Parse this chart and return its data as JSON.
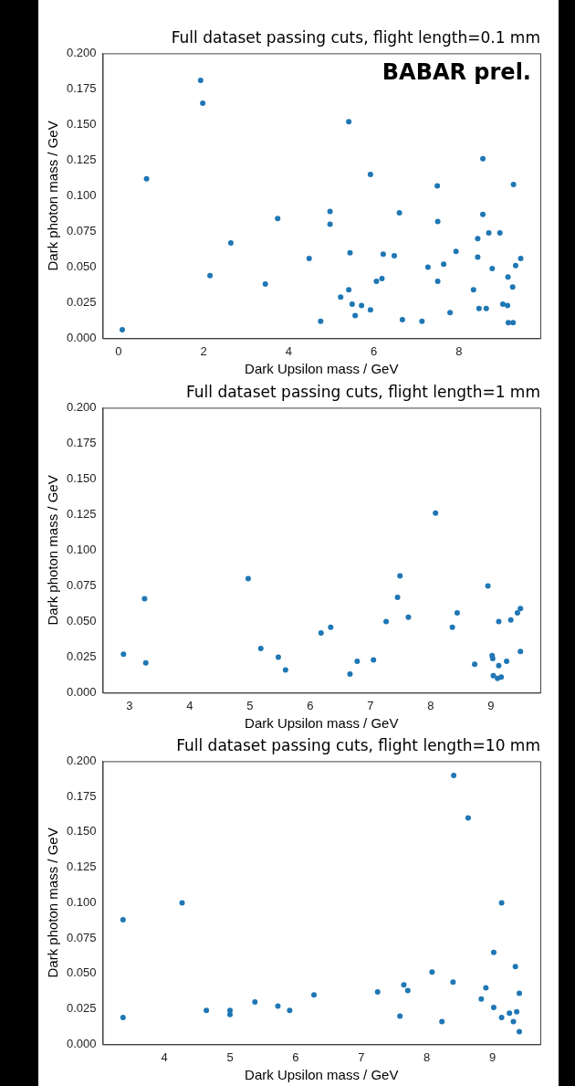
{
  "chart_data": [
    {
      "type": "scatter",
      "title": "Full dataset passing cuts, flight length=0.1 mm",
      "xlabel": "Dark Upsilon mass / GeV",
      "ylabel": "Dark photon mass / GeV",
      "annotations": [
        "BABAR prel."
      ],
      "marker": "circle",
      "xlim": [
        -0.37,
        9.91
      ],
      "xticks": [
        0,
        2,
        4,
        6,
        8
      ],
      "ylim": [
        0,
        0.2
      ],
      "yticks": [
        {
          "value": 0,
          "label": "0.000"
        },
        {
          "value": 0.025,
          "label": "0.025"
        },
        {
          "value": 0.05,
          "label": "0.050"
        },
        {
          "value": 0.075,
          "label": "0.075"
        },
        {
          "value": 0.1,
          "label": "0.100"
        },
        {
          "value": 0.125,
          "label": "0.125"
        },
        {
          "value": 0.15,
          "label": "0.150"
        },
        {
          "value": 0.175,
          "label": "0.175"
        },
        {
          "value": 0.2,
          "label": "0.200"
        }
      ],
      "series": [
        {
          "color": "#1f77b4",
          "x": [
            0.09,
            0.66,
            1.93,
            1.98,
            2.15,
            2.64,
            3.45,
            3.74,
            4.48,
            4.75,
            5.41,
            8.56,
            5.92,
            7.49,
            9.28,
            4.97,
            6.6,
            8.56,
            4.97,
            7.5,
            8.7,
            8.96,
            8.44,
            7.93,
            5.44,
            6.22,
            6.48,
            8.44,
            9.45,
            7.27,
            7.64,
            8.78,
            9.33,
            6.19,
            6.06,
            7.5,
            9.15,
            5.41,
            8.34,
            9.26,
            5.22,
            5.49,
            5.71,
            5.92,
            5.56,
            9.03,
            9.14,
            8.47,
            8.64,
            7.79,
            6.67,
            7.13,
            9.16,
            9.27
          ],
          "values": [
            0.006,
            0.112,
            0.181,
            0.165,
            0.044,
            0.067,
            0.038,
            0.084,
            0.056,
            0.012,
            0.152,
            0.126,
            0.115,
            0.107,
            0.108,
            0.089,
            0.088,
            0.087,
            0.08,
            0.082,
            0.074,
            0.074,
            0.07,
            0.061,
            0.06,
            0.059,
            0.058,
            0.057,
            0.056,
            0.05,
            0.052,
            0.049,
            0.051,
            0.042,
            0.04,
            0.04,
            0.043,
            0.034,
            0.034,
            0.036,
            0.029,
            0.024,
            0.023,
            0.02,
            0.016,
            0.024,
            0.023,
            0.021,
            0.021,
            0.018,
            0.013,
            0.012,
            0.011,
            0.011
          ]
        }
      ]
    },
    {
      "type": "scatter",
      "title": "Full dataset passing cuts, flight length=1 mm",
      "xlabel": "Dark Upsilon mass / GeV",
      "ylabel": "Dark photon mass / GeV",
      "marker": "circle",
      "xlim": [
        2.555,
        9.82
      ],
      "xticks": [
        3,
        4,
        5,
        6,
        7,
        8,
        9
      ],
      "ylim": [
        0,
        0.2
      ],
      "yticks": [
        {
          "value": 0,
          "label": "0.000"
        },
        {
          "value": 0.025,
          "label": "0.025"
        },
        {
          "value": 0.05,
          "label": "0.050"
        },
        {
          "value": 0.075,
          "label": "0.075"
        },
        {
          "value": 0.1,
          "label": "0.100"
        },
        {
          "value": 0.125,
          "label": "0.125"
        },
        {
          "value": 0.15,
          "label": "0.150"
        },
        {
          "value": 0.175,
          "label": "0.175"
        },
        {
          "value": 0.2,
          "label": "0.200"
        }
      ],
      "series": [
        {
          "color": "#1f77b4",
          "x": [
            2.9,
            3.25,
            3.27,
            4.97,
            5.18,
            5.47,
            5.59,
            6.18,
            6.34,
            6.66,
            6.78,
            7.05,
            7.26,
            7.45,
            7.49,
            7.63,
            8.08,
            8.36,
            8.44,
            8.73,
            8.95,
            9.02,
            9.03,
            9.04,
            9.13,
            9.13,
            9.11,
            9.17,
            9.26,
            9.33,
            9.44,
            9.49,
            9.49
          ],
          "values": [
            0.027,
            0.066,
            0.021,
            0.08,
            0.031,
            0.025,
            0.016,
            0.042,
            0.046,
            0.013,
            0.022,
            0.023,
            0.05,
            0.067,
            0.082,
            0.053,
            0.126,
            0.046,
            0.056,
            0.02,
            0.075,
            0.026,
            0.024,
            0.012,
            0.05,
            0.019,
            0.01,
            0.011,
            0.022,
            0.051,
            0.056,
            0.059,
            0.029
          ]
        }
      ]
    },
    {
      "type": "scatter",
      "title": "Full dataset passing cuts, flight length=10 mm",
      "xlabel": "Dark Upsilon mass / GeV",
      "ylabel": "Dark photon mass / GeV",
      "marker": "circle",
      "xlim": [
        3.06,
        9.73
      ],
      "xticks": [
        4,
        5,
        6,
        7,
        8,
        9
      ],
      "ylim": [
        0,
        0.2
      ],
      "yticks": [
        {
          "value": 0,
          "label": "0.000"
        },
        {
          "value": 0.025,
          "label": "0.025"
        },
        {
          "value": 0.05,
          "label": "0.050"
        },
        {
          "value": 0.075,
          "label": "0.075"
        },
        {
          "value": 0.1,
          "label": "0.100"
        },
        {
          "value": 0.125,
          "label": "0.125"
        },
        {
          "value": 0.15,
          "label": "0.150"
        },
        {
          "value": 0.175,
          "label": "0.175"
        },
        {
          "value": 0.2,
          "label": "0.200"
        }
      ],
      "series": [
        {
          "color": "#1f77b4",
          "x": [
            3.37,
            3.37,
            4.27,
            4.64,
            5.0,
            5.0,
            5.38,
            5.73,
            5.91,
            6.28,
            8.41,
            8.63,
            9.14,
            9.02,
            9.35,
            8.08,
            8.4,
            7.65,
            7.71,
            7.25,
            8.9,
            9.41,
            8.83,
            9.02,
            7.59,
            9.14,
            9.26,
            9.37,
            8.23,
            9.32,
            9.41
          ],
          "values": [
            0.088,
            0.019,
            0.1,
            0.024,
            0.024,
            0.021,
            0.03,
            0.027,
            0.024,
            0.035,
            0.19,
            0.16,
            0.1,
            0.065,
            0.055,
            0.051,
            0.044,
            0.042,
            0.038,
            0.037,
            0.04,
            0.036,
            0.032,
            0.026,
            0.02,
            0.019,
            0.022,
            0.023,
            0.016,
            0.016,
            0.009
          ]
        }
      ]
    }
  ]
}
